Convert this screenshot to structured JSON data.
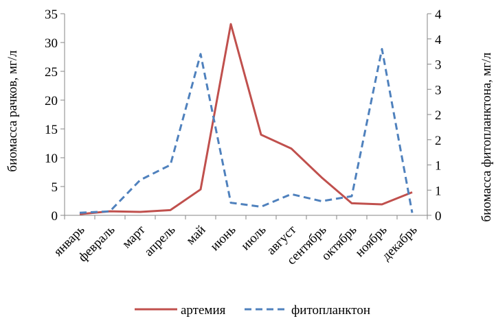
{
  "chart_data": {
    "type": "line",
    "title": "",
    "categories": [
      "январь",
      "февраль",
      "март",
      "апрель",
      "май",
      "июнь",
      "июль",
      "август",
      "сентябрь",
      "октябрь",
      "ноябрь",
      "декабрь"
    ],
    "ylabel_left": "биомасса рачков,  мг/л",
    "ylabel_right": "биомасса фитопланктона,  мг/л",
    "y_left": {
      "min": 0,
      "max": 35,
      "ticks": [
        0,
        5,
        10,
        15,
        20,
        25,
        30,
        35
      ]
    },
    "y_right": {
      "min": 0,
      "max": 4,
      "ticks": [
        0,
        0.5,
        1,
        1.5,
        2,
        2.5,
        3,
        3.5,
        4
      ],
      "tick_labels": [
        "0",
        "1",
        "1",
        "2",
        "2",
        "3",
        "3",
        "4",
        "4"
      ]
    },
    "series": [
      {
        "name": "артемия",
        "axis": "left",
        "color": "#C0504D",
        "style": "solid",
        "values": [
          0.2,
          0.7,
          0.6,
          0.9,
          4.5,
          33.2,
          14,
          11.6,
          6.6,
          2.1,
          1.9,
          4.0
        ]
      },
      {
        "name": "фитопланктон",
        "axis": "right",
        "color": "#4F81BD",
        "style": "dashed",
        "values": [
          0.05,
          0.08,
          0.7,
          1.0,
          3.2,
          0.25,
          0.17,
          0.42,
          0.28,
          0.38,
          3.3,
          0.05
        ]
      }
    ],
    "grid": false,
    "legend": "bottom"
  }
}
